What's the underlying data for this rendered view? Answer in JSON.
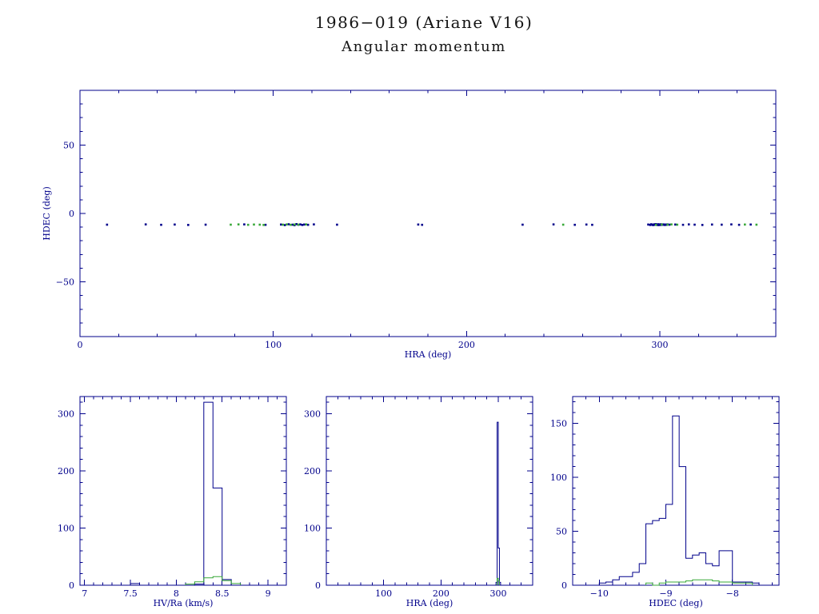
{
  "page": {
    "title_line1": "1986−019 (Ariane V16)",
    "title_line2": "Angular momentum"
  },
  "colors": {
    "axis": "#00008b",
    "blue": "#00008b",
    "green": "#38a838",
    "background": "#ffffff"
  },
  "chart_data": [
    {
      "type": "scatter",
      "name": "hdec-vs-hra",
      "xlabel": "HRA (deg)",
      "ylabel": "HDEC (deg)",
      "xlim": [
        0,
        360
      ],
      "ylim": [
        -90,
        90
      ],
      "xticks": [
        0,
        100,
        200,
        300
      ],
      "yticks": [
        -50,
        0,
        50
      ],
      "ytick_labels": [
        "−50",
        "0",
        "50"
      ],
      "xminor": 20,
      "yminor": 10,
      "series": [
        {
          "name": "population-blue",
          "color": "blue",
          "points": [
            [
              14,
              -8.2
            ],
            [
              34,
              -8.0
            ],
            [
              42,
              -8.3
            ],
            [
              49,
              -8.1
            ],
            [
              56,
              -8.4
            ],
            [
              65,
              -8.2
            ],
            [
              85,
              -8.0
            ],
            [
              96,
              -8.3
            ],
            [
              104,
              -8.1
            ],
            [
              106,
              -8.5
            ],
            [
              108,
              -7.9
            ],
            [
              110,
              -8.2
            ],
            [
              111,
              -8.6
            ],
            [
              112,
              -7.8
            ],
            [
              113,
              -8.3
            ],
            [
              114,
              -8.0
            ],
            [
              115,
              -8.4
            ],
            [
              116,
              -8.1
            ],
            [
              118,
              -8.3
            ],
            [
              121,
              -8.0
            ],
            [
              133,
              -8.2
            ],
            [
              175,
              -8.1
            ],
            [
              177,
              -8.3
            ],
            [
              229,
              -8.2
            ],
            [
              245,
              -8.0
            ],
            [
              256,
              -8.3
            ],
            [
              262,
              -8.1
            ],
            [
              265,
              -8.3
            ],
            [
              294,
              -8.1
            ],
            [
              295,
              -8.4
            ],
            [
              295.5,
              -7.9
            ],
            [
              296,
              -8.2
            ],
            [
              296.5,
              -8.5
            ],
            [
              297,
              -8.0
            ],
            [
              297.3,
              -8.3
            ],
            [
              297.8,
              -7.8
            ],
            [
              298,
              -8.1
            ],
            [
              298.4,
              -8.4
            ],
            [
              298.8,
              -8.2
            ],
            [
              299,
              -7.9
            ],
            [
              299.3,
              -8.5
            ],
            [
              299.6,
              -8.0
            ],
            [
              300,
              -8.2
            ],
            [
              300.3,
              -8.4
            ],
            [
              300.6,
              -7.9
            ],
            [
              301,
              -8.1
            ],
            [
              301.4,
              -8.3
            ],
            [
              301.8,
              -8.0
            ],
            [
              302.2,
              -8.2
            ],
            [
              302.6,
              -8.4
            ],
            [
              303,
              -8.1
            ],
            [
              303.5,
              -8.3
            ],
            [
              304,
              -8.0
            ],
            [
              305,
              -8.2
            ],
            [
              308,
              -8.1
            ],
            [
              312,
              -8.3
            ],
            [
              315,
              -8.0
            ],
            [
              318,
              -8.2
            ],
            [
              322,
              -8.4
            ],
            [
              327,
              -8.1
            ],
            [
              332,
              -8.2
            ],
            [
              337,
              -8.0
            ],
            [
              341,
              -8.3
            ],
            [
              347,
              -8.1
            ]
          ]
        },
        {
          "name": "population-green",
          "color": "green",
          "points": [
            [
              78,
              -8.2
            ],
            [
              82,
              -8.0
            ],
            [
              87,
              -8.3
            ],
            [
              90,
              -8.1
            ],
            [
              93,
              -8.2
            ],
            [
              95,
              -8.4
            ],
            [
              105,
              -8.2
            ],
            [
              107,
              -8.0
            ],
            [
              109,
              -8.3
            ],
            [
              111,
              -8.1
            ],
            [
              113,
              -8.2
            ],
            [
              117,
              -8.0
            ],
            [
              250,
              -8.2
            ],
            [
              298,
              -8.3
            ],
            [
              301,
              -8.1
            ],
            [
              304,
              -8.2
            ],
            [
              306,
              -8.0
            ],
            [
              309,
              -8.2
            ],
            [
              344,
              -8.1
            ],
            [
              350,
              -8.2
            ]
          ]
        }
      ]
    },
    {
      "type": "histogram",
      "name": "hv-ra-histogram",
      "xlabel": "HV/Ra (km/s)",
      "ylabel": "",
      "xlim": [
        6.95,
        9.2
      ],
      "ylim": [
        0,
        330
      ],
      "xticks": [
        7,
        7.5,
        8,
        8.5,
        9
      ],
      "xtick_labels": [
        "7",
        "7.5",
        "8",
        "8.5",
        "9"
      ],
      "yticks": [
        0,
        100,
        200,
        300
      ],
      "xminor": 0.1,
      "yminor": 20,
      "bin_width": 0.1,
      "series": [
        {
          "name": "population-blue",
          "color": "blue",
          "bins": [
            [
              7.5,
              3
            ],
            [
              8.2,
              2
            ],
            [
              8.3,
              320
            ],
            [
              8.4,
              170
            ],
            [
              8.5,
              10
            ]
          ]
        },
        {
          "name": "population-green",
          "color": "green",
          "bins": [
            [
              8.1,
              2
            ],
            [
              8.2,
              6
            ],
            [
              8.3,
              13
            ],
            [
              8.4,
              15
            ],
            [
              8.5,
              8
            ],
            [
              8.6,
              3
            ]
          ]
        }
      ]
    },
    {
      "type": "histogram",
      "name": "hra-histogram",
      "xlabel": "HRA (deg)",
      "ylabel": "",
      "xlim": [
        0,
        360
      ],
      "ylim": [
        0,
        330
      ],
      "xticks": [
        100,
        200,
        300
      ],
      "yticks": [
        0,
        100,
        200,
        300
      ],
      "xminor": 20,
      "yminor": 20,
      "bin_width": 2,
      "series": [
        {
          "name": "population-blue",
          "color": "blue",
          "bins": [
            [
              296,
              5
            ],
            [
              298,
              285
            ],
            [
              300,
              65
            ],
            [
              302,
              5
            ]
          ]
        },
        {
          "name": "population-green",
          "color": "green",
          "bins": [
            [
              298,
              12
            ],
            [
              300,
              8
            ]
          ]
        }
      ]
    },
    {
      "type": "histogram",
      "name": "hdec-histogram",
      "xlabel": "HDEC (deg)",
      "ylabel": "",
      "xlim": [
        -10.4,
        -7.3
      ],
      "ylim": [
        0,
        175
      ],
      "xticks": [
        -10,
        -9,
        -8
      ],
      "xtick_labels": [
        "−10",
        "−9",
        "−8"
      ],
      "yticks": [
        0,
        50,
        100,
        150
      ],
      "xminor": 0.2,
      "yminor": 10,
      "bin_width": 0.1,
      "series": [
        {
          "name": "population-blue",
          "color": "blue",
          "bins": [
            [
              -10.0,
              2
            ],
            [
              -9.9,
              3
            ],
            [
              -9.8,
              5
            ],
            [
              -9.7,
              8
            ],
            [
              -9.6,
              8
            ],
            [
              -9.5,
              12
            ],
            [
              -9.4,
              20
            ],
            [
              -9.3,
              57
            ],
            [
              -9.2,
              60
            ],
            [
              -9.1,
              62
            ],
            [
              -9.0,
              75
            ],
            [
              -8.9,
              157
            ],
            [
              -8.8,
              110
            ],
            [
              -8.7,
              25
            ],
            [
              -8.6,
              28
            ],
            [
              -8.5,
              30
            ],
            [
              -8.4,
              20
            ],
            [
              -8.3,
              18
            ],
            [
              -8.2,
              32
            ],
            [
              -8.1,
              32
            ],
            [
              -8.0,
              3
            ],
            [
              -7.9,
              3
            ],
            [
              -7.8,
              3
            ],
            [
              -7.7,
              2
            ]
          ]
        },
        {
          "name": "population-green",
          "color": "green",
          "bins": [
            [
              -9.3,
              2
            ],
            [
              -9.1,
              2
            ],
            [
              -9.0,
              3
            ],
            [
              -8.9,
              3
            ],
            [
              -8.8,
              3
            ],
            [
              -8.7,
              4
            ],
            [
              -8.6,
              5
            ],
            [
              -8.5,
              5
            ],
            [
              -8.4,
              5
            ],
            [
              -8.3,
              4
            ],
            [
              -8.2,
              3
            ],
            [
              -8.1,
              3
            ],
            [
              -8.0,
              2
            ],
            [
              -7.9,
              2
            ],
            [
              -7.8,
              2
            ]
          ]
        }
      ]
    }
  ]
}
